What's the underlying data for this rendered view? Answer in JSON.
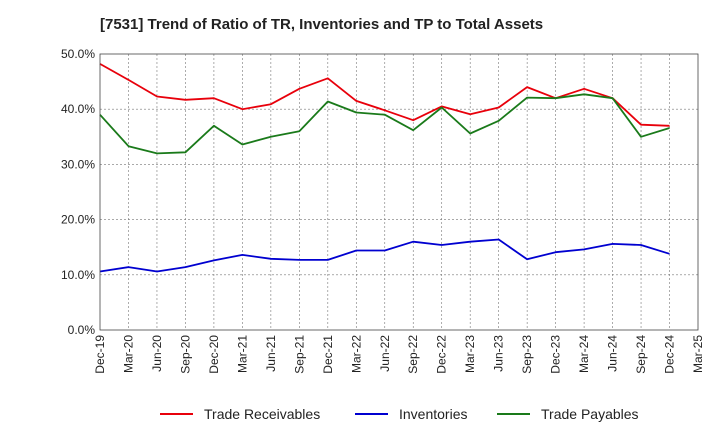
{
  "chart_data": {
    "type": "line",
    "title": "[7531]  Trend of Ratio of TR, Inventories and TP to Total Assets",
    "xlabel": "",
    "ylabel": "",
    "x": [
      "Dec-19",
      "Mar-20",
      "Jun-20",
      "Sep-20",
      "Dec-20",
      "Mar-21",
      "Jun-21",
      "Sep-21",
      "Dec-21",
      "Mar-22",
      "Jun-22",
      "Sep-22",
      "Dec-22",
      "Mar-23",
      "Jun-23",
      "Sep-23",
      "Dec-23",
      "Mar-24",
      "Jun-24",
      "Sep-24",
      "Dec-24",
      "Mar-25"
    ],
    "x_tick_labels": [
      "Dec-19",
      "Mar-20",
      "Jun-20",
      "Sep-20",
      "Dec-20",
      "Mar-21",
      "Jun-21",
      "Sep-21",
      "Dec-21",
      "Mar-22",
      "Jun-22",
      "Sep-22",
      "Dec-22",
      "Mar-23",
      "Jun-23",
      "Sep-23",
      "Dec-23",
      "Mar-24",
      "Jun-24",
      "Sep-24",
      "Dec-24",
      "Mar-25"
    ],
    "y_ticks": [
      0,
      10,
      20,
      30,
      40,
      50
    ],
    "y_tick_labels": [
      "0.0%",
      "10.0%",
      "20.0%",
      "30.0%",
      "40.0%",
      "50.0%"
    ],
    "ylim": [
      0,
      50
    ],
    "grid": true,
    "legend_position": "bottom",
    "series": [
      {
        "name": "Trade Receivables",
        "color": "#e8000b",
        "values": [
          48.2,
          45.3,
          42.3,
          41.7,
          42.0,
          40.0,
          40.9,
          43.7,
          45.6,
          41.5,
          39.8,
          38.0,
          40.5,
          39.1,
          40.3,
          44.0,
          42.0,
          43.7,
          42.0,
          37.2,
          37.0,
          null
        ]
      },
      {
        "name": "Inventories",
        "color": "#0000d0",
        "values": [
          10.6,
          11.4,
          10.6,
          11.4,
          12.6,
          13.6,
          12.9,
          12.7,
          12.7,
          14.4,
          14.4,
          16.0,
          15.4,
          16.0,
          16.4,
          12.8,
          14.1,
          14.6,
          15.6,
          15.4,
          13.8,
          null
        ]
      },
      {
        "name": "Trade Payables",
        "color": "#1a7a1a",
        "values": [
          39.0,
          33.3,
          32.0,
          32.2,
          37.0,
          33.6,
          35.0,
          36.0,
          41.4,
          39.4,
          39.0,
          36.2,
          40.3,
          35.6,
          37.9,
          42.1,
          42.0,
          42.7,
          42.0,
          35.0,
          36.6,
          null
        ]
      }
    ]
  }
}
